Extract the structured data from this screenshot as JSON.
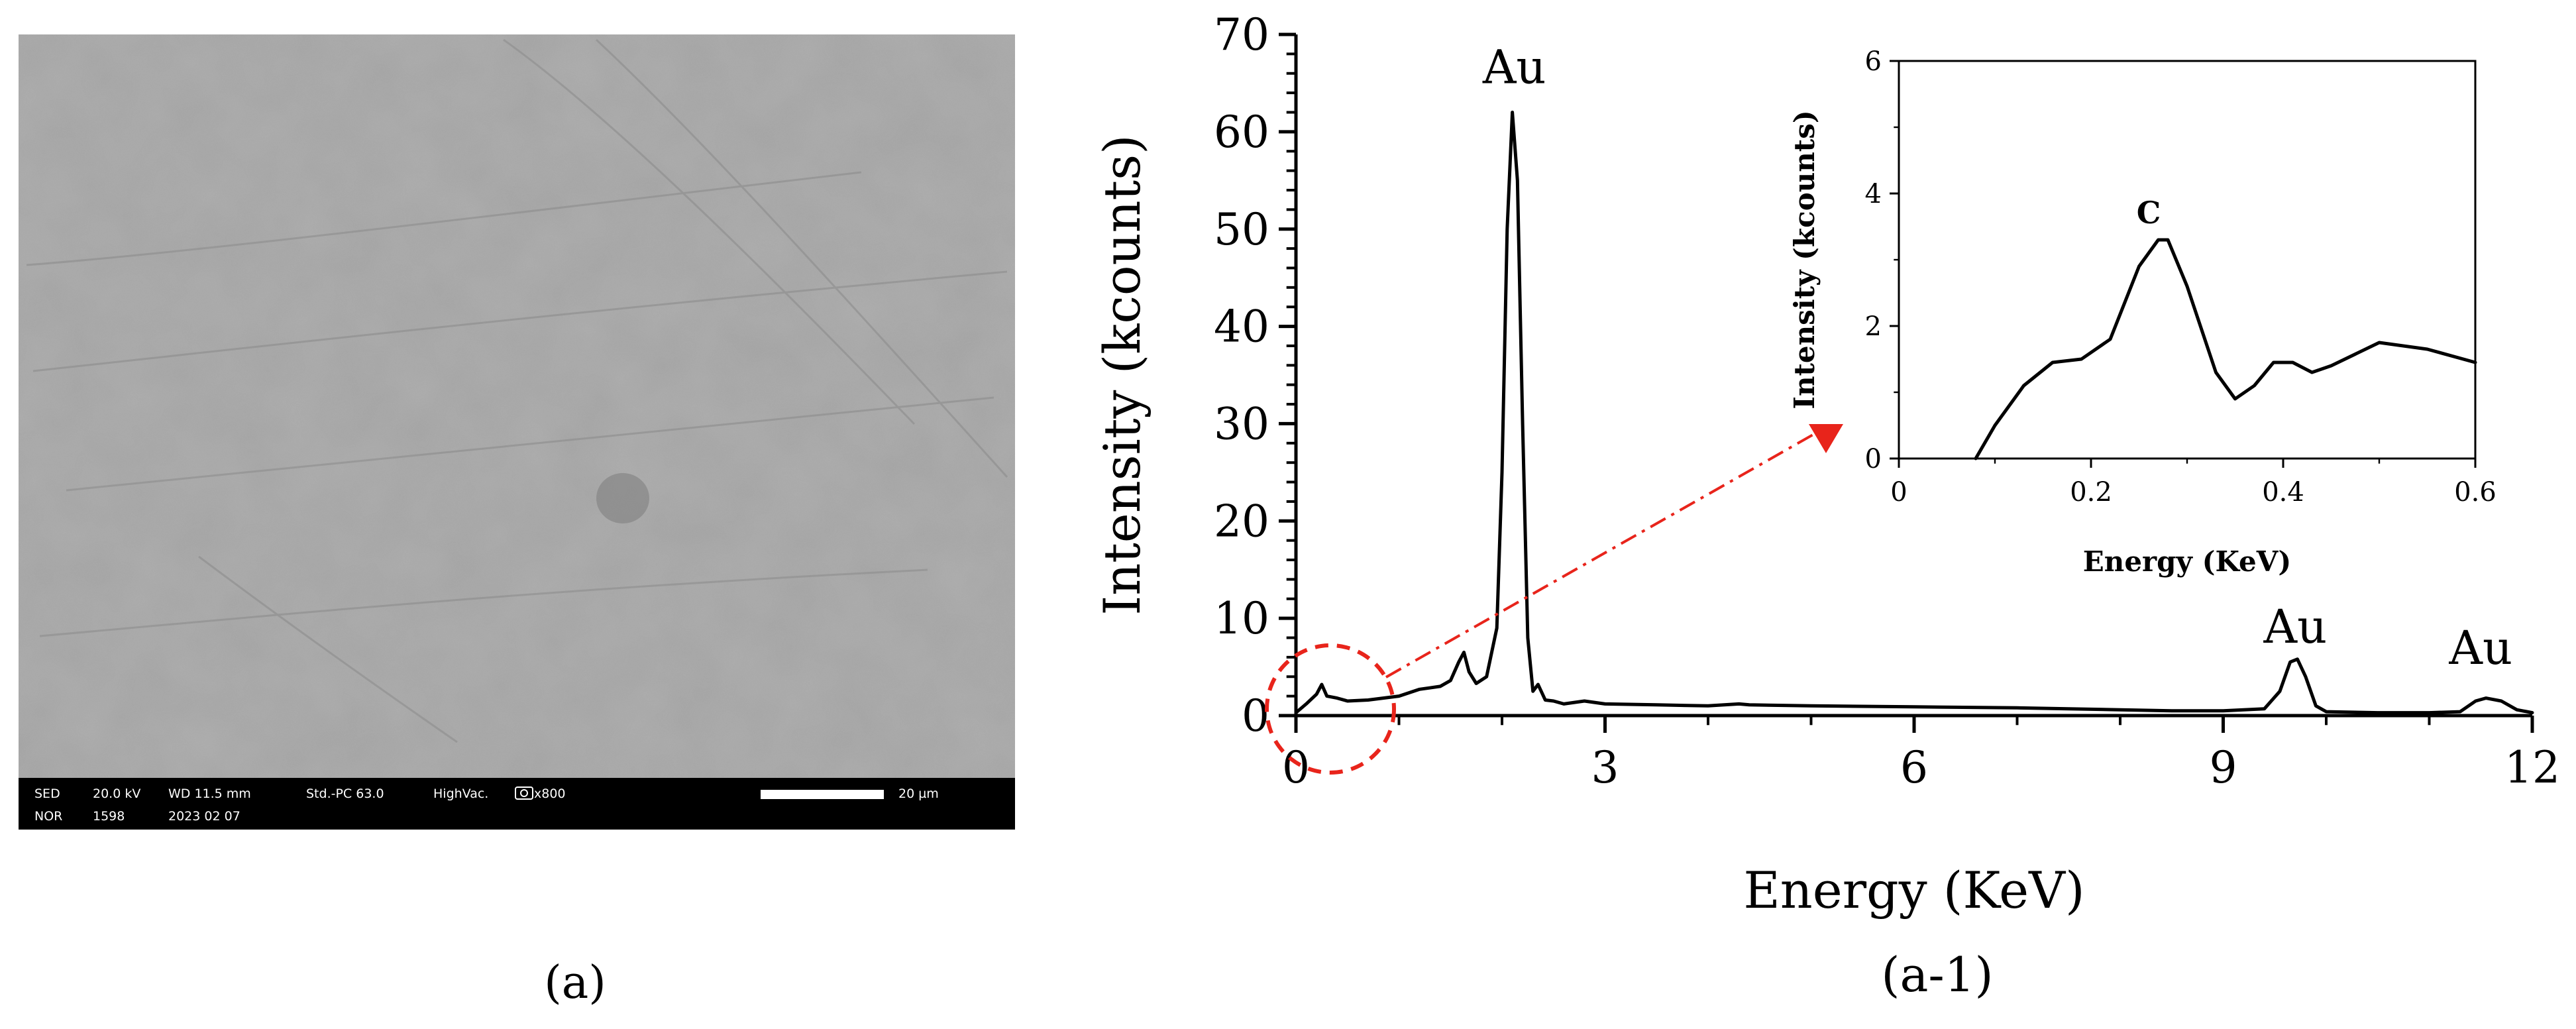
{
  "sem": {
    "caption": "(a)",
    "info": {
      "row1": [
        "SED",
        "20.0 kV",
        "WD 11.5 mm",
        "Std.-PC 63.0",
        "HighVac.",
        "x800"
      ],
      "row2": [
        "NOR",
        "1598",
        "2023 02 07"
      ],
      "scale_text": "20 µm"
    }
  },
  "eds": {
    "caption": "(a-1)",
    "chart_data": [
      {
        "type": "line",
        "title": "",
        "xlabel": "Energy (KeV)",
        "ylabel": "Intensity (kcounts)",
        "xlim": [
          0,
          12
        ],
        "ylim": [
          0,
          70
        ],
        "x_ticks": [
          0,
          3,
          6,
          9,
          12
        ],
        "y_ticks": [
          0,
          10,
          20,
          30,
          40,
          50,
          60,
          70
        ],
        "grid": false,
        "annotations": [
          {
            "text": "Au",
            "x": 2.12,
            "y": 65
          },
          {
            "text": "Au",
            "x": 9.7,
            "y": 7.5
          },
          {
            "text": "Au",
            "x": 11.5,
            "y": 5.3
          }
        ],
        "series": [
          {
            "x": [
              0,
              0.1,
              0.2,
              0.25,
              0.3,
              0.4,
              0.5,
              0.7,
              1.0,
              1.2,
              1.4,
              1.5,
              1.58,
              1.63,
              1.68,
              1.75,
              1.85,
              1.95,
              2.0,
              2.05,
              2.1,
              2.15,
              2.2,
              2.25,
              2.3,
              2.35,
              2.42,
              2.5,
              2.6,
              2.8,
              3.0,
              3.5,
              4.0,
              4.3,
              4.4,
              5.0,
              6.0,
              7.0,
              8.0,
              8.5,
              9.0,
              9.4,
              9.55,
              9.65,
              9.72,
              9.8,
              9.9,
              10.0,
              10.5,
              11.0,
              11.3,
              11.45,
              11.55,
              11.7,
              11.85,
              12.0
            ],
            "y": [
              0.3,
              1.2,
              2.2,
              3.2,
              2.0,
              1.8,
              1.5,
              1.6,
              2.0,
              2.7,
              3.0,
              3.6,
              5.5,
              6.5,
              4.5,
              3.3,
              4.0,
              9.0,
              25.0,
              50.0,
              62.0,
              55.0,
              30.0,
              8.0,
              2.5,
              3.2,
              1.6,
              1.5,
              1.2,
              1.5,
              1.2,
              1.1,
              1.0,
              1.2,
              1.1,
              1.0,
              0.9,
              0.8,
              0.6,
              0.5,
              0.5,
              0.7,
              2.5,
              5.5,
              5.8,
              4.0,
              1.0,
              0.4,
              0.3,
              0.3,
              0.4,
              1.5,
              1.8,
              1.5,
              0.6,
              0.3
            ]
          }
        ]
      },
      {
        "type": "line",
        "title": "",
        "xlabel": "Energy (KeV)",
        "ylabel": "Intensity (kcounts)",
        "xlim": [
          0,
          0.6
        ],
        "ylim": [
          0,
          6
        ],
        "x_ticks": [
          0,
          0.2,
          0.4,
          0.6
        ],
        "y_ticks": [
          0,
          2,
          4,
          6
        ],
        "grid": false,
        "annotations": [
          {
            "text": "C",
            "x": 0.26,
            "y": 3.55
          }
        ],
        "series": [
          {
            "x": [
              0.08,
              0.1,
              0.13,
              0.16,
              0.19,
              0.22,
              0.25,
              0.27,
              0.28,
              0.3,
              0.33,
              0.35,
              0.37,
              0.39,
              0.41,
              0.43,
              0.45,
              0.5,
              0.55,
              0.6
            ],
            "y": [
              0.0,
              0.5,
              1.1,
              1.45,
              1.5,
              1.8,
              2.9,
              3.3,
              3.3,
              2.6,
              1.3,
              0.9,
              1.1,
              1.45,
              1.45,
              1.3,
              1.4,
              1.75,
              1.65,
              1.45
            ]
          }
        ]
      }
    ]
  }
}
